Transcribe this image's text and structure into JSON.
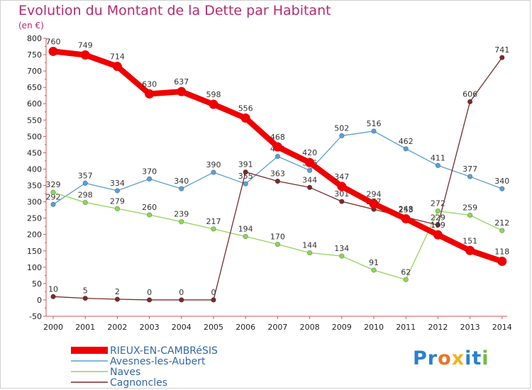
{
  "title": "Evolution du Montant de la Dette par Habitant",
  "unit": "(en €)",
  "logo": {
    "text": "Proxiti",
    "letters": [
      {
        "ch": "P",
        "color": "#2b7fd0"
      },
      {
        "ch": "r",
        "color": "#2b7fd0"
      },
      {
        "ch": "o",
        "color": "#e8752a"
      },
      {
        "ch": "x",
        "color": "#f0b21e"
      },
      {
        "ch": "i",
        "color": "#2b7fd0"
      },
      {
        "ch": "t",
        "color": "#2b7fd0"
      },
      {
        "ch": "i",
        "color": "#6cbf3c"
      }
    ]
  },
  "chart_data": {
    "type": "line",
    "x": [
      2000,
      2001,
      2002,
      2003,
      2004,
      2005,
      2006,
      2007,
      2008,
      2009,
      2010,
      2011,
      2012,
      2013,
      2014
    ],
    "ylim": [
      -50,
      800
    ],
    "yticks": [
      -50,
      0,
      50,
      100,
      150,
      200,
      250,
      300,
      350,
      400,
      450,
      500,
      550,
      600,
      650,
      700,
      750,
      800
    ],
    "grid": false,
    "legend_position": "bottom-left",
    "series": [
      {
        "name": "Avesnes-les-Aubert",
        "color": "#5b9fd4",
        "values": [
          292,
          357,
          334,
          370,
          340,
          390,
          355,
          439,
          396,
          502,
          516,
          462,
          411,
          377,
          340
        ]
      },
      {
        "name": "Naves",
        "color": "#8ed65a",
        "values": [
          329,
          298,
          279,
          260,
          239,
          217,
          194,
          170,
          144,
          134,
          91,
          62,
          272,
          259,
          212
        ]
      },
      {
        "name": "Cagnoncles",
        "color": "#7a2a2a",
        "values": [
          10,
          5,
          2,
          0,
          0,
          0,
          391,
          363,
          344,
          301,
          277,
          253,
          229,
          606,
          741
        ]
      },
      {
        "name": "RIEUX-EN-CAMBRéSIS",
        "color": "#ee0000",
        "values": [
          760,
          749,
          714,
          630,
          637,
          598,
          556,
          468,
          420,
          347,
          294,
          248,
          199,
          151,
          118
        ]
      }
    ]
  }
}
